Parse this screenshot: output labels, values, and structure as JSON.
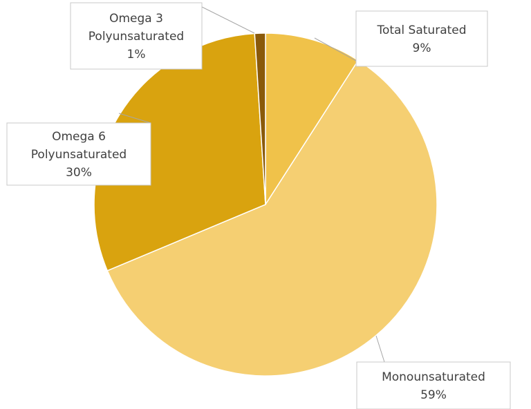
{
  "chart_data": {
    "type": "pie",
    "title": "",
    "slices": [
      {
        "label_lines": [
          "Total Saturated"
        ],
        "value": 9,
        "value_label": "9%",
        "color": "#F0C24A"
      },
      {
        "label_lines": [
          "Monounsaturated"
        ],
        "value": 59,
        "value_label": "59%",
        "color": "#F5CF72"
      },
      {
        "label_lines": [
          "Omega 6",
          "Polyunsaturated"
        ],
        "value": 30,
        "value_label": "30%",
        "color": "#D9A30F"
      },
      {
        "label_lines": [
          "Omega 3",
          "Polyunsaturated"
        ],
        "value": 1,
        "value_label": "1%",
        "color": "#8A5A0A"
      }
    ],
    "legend": "none",
    "data_labels": "callout"
  }
}
